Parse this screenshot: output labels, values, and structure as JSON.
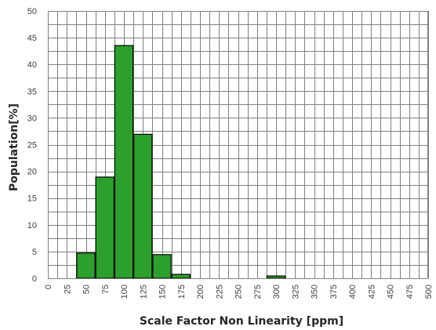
{
  "chart_data": {
    "type": "bar",
    "title": "",
    "xlabel": "Scale Factor Non Linearity [ppm]",
    "ylabel": "Population[%]",
    "x_ticks": [
      "0",
      "25",
      "50",
      "75",
      "100",
      "125",
      "150",
      "175",
      "200",
      "225",
      "250",
      "275",
      "300",
      "325",
      "350",
      "375",
      "400",
      "425",
      "450",
      "475",
      "500"
    ],
    "y_ticks": [
      "0",
      "5",
      "10",
      "15",
      "20",
      "25",
      "30",
      "35",
      "40",
      "45",
      "50"
    ],
    "xlim": [
      0,
      500
    ],
    "ylim": [
      0,
      50
    ],
    "x_grid_step": 12.5,
    "y_grid_step": 2.5,
    "grid": true,
    "bar_color": "#2ca02c",
    "bar_edge_color": "#000000",
    "grid_color": "#808080",
    "bars": [
      {
        "from": 37.5,
        "to": 62.5,
        "value": 4.8
      },
      {
        "from": 62.5,
        "to": 87.5,
        "value": 19.0
      },
      {
        "from": 87.5,
        "to": 112.5,
        "value": 43.6
      },
      {
        "from": 112.5,
        "to": 137.5,
        "value": 27.0
      },
      {
        "from": 137.5,
        "to": 162.5,
        "value": 4.5
      },
      {
        "from": 162.5,
        "to": 187.5,
        "value": 0.8
      },
      {
        "from": 287.5,
        "to": 312.5,
        "value": 0.5
      }
    ]
  }
}
